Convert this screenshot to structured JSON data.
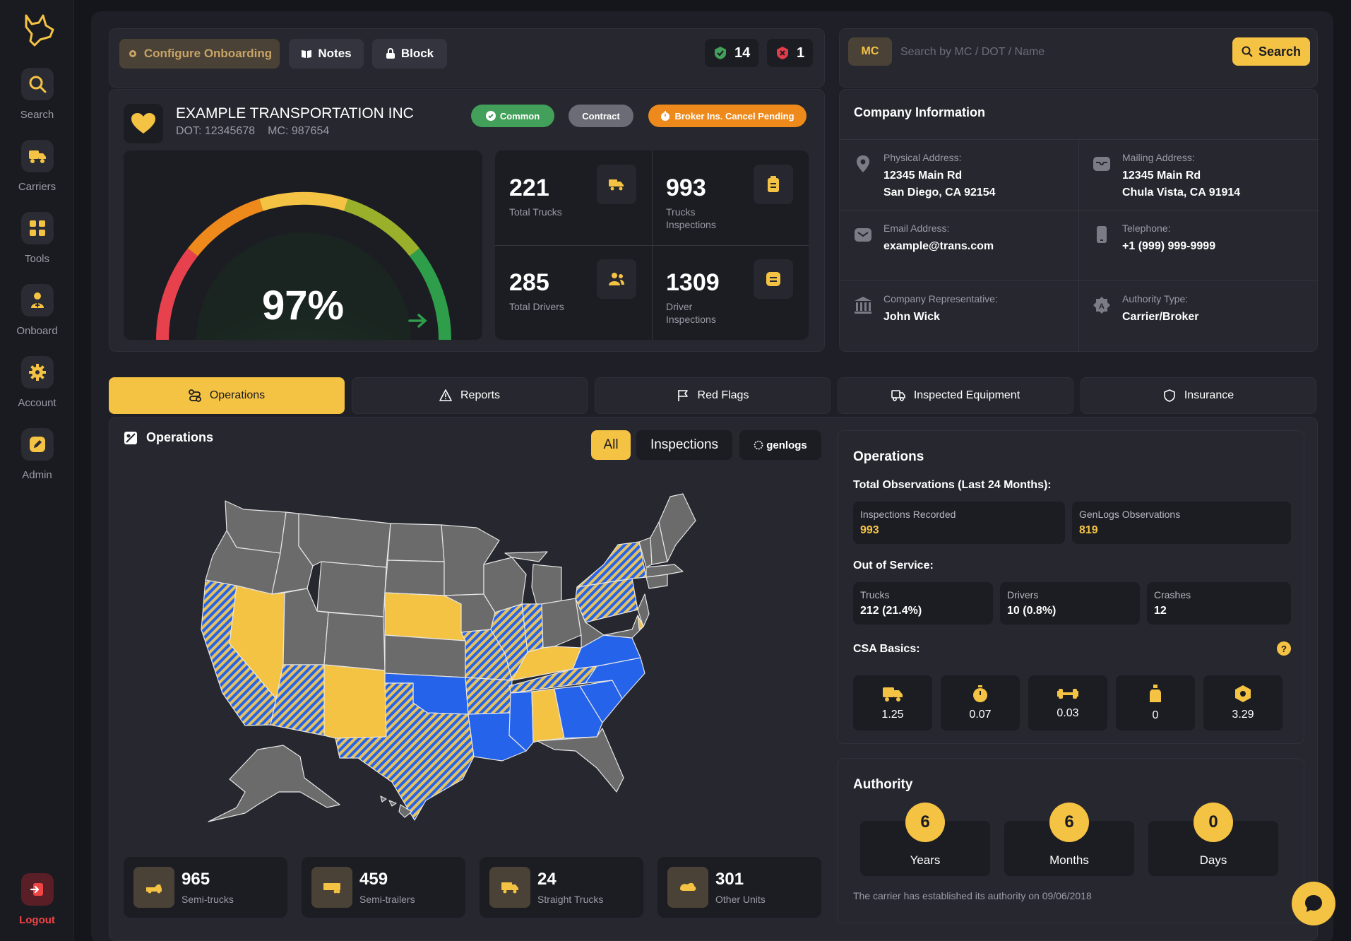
{
  "sidebar": {
    "items": [
      {
        "label": "Search",
        "icon": "search-icon"
      },
      {
        "label": "Carriers",
        "icon": "truck-icon"
      },
      {
        "label": "Tools",
        "icon": "grid-icon"
      },
      {
        "label": "Onboard",
        "icon": "user-plus-icon"
      },
      {
        "label": "Account",
        "icon": "gear-icon"
      },
      {
        "label": "Admin",
        "icon": "edit-icon"
      }
    ],
    "logout": "Logout"
  },
  "toolbar": {
    "configure_label": "Configure Onboarding",
    "notes_label": "Notes",
    "block_label": "Block",
    "approved_count": "14",
    "rejected_count": "1"
  },
  "search": {
    "prefix": "MC",
    "placeholder": "Search by MC / DOT / Name",
    "button_label": "Search"
  },
  "company": {
    "name": "EXAMPLE TRANSPORTATION INC",
    "dot": "DOT: 12345678",
    "mc": "MC: 987654",
    "tags": [
      "Common",
      "Contract",
      "Broker Ins. Cancel Pending"
    ],
    "score": "97%",
    "score_fraction": 0.97,
    "stats": [
      {
        "value": "221",
        "label": "Total Trucks"
      },
      {
        "value": "993",
        "label": "Trucks Inspections"
      },
      {
        "value": "285",
        "label": "Total Drivers"
      },
      {
        "value": "1309",
        "label": "Driver Inspections"
      }
    ]
  },
  "company_info": {
    "title": "Company Information",
    "physical_label": "Physical Address:",
    "physical_value": "12345 Main Rd\nSan Diego, CA 92154",
    "mailing_label": "Mailing Address:",
    "mailing_value": "12345 Main Rd\nChula Vista, CA 91914",
    "email_label": "Email Address:",
    "email_value": "example@trans.com",
    "phone_label": "Telephone:",
    "phone_value": "+1 (999) 999-9999",
    "rep_label": "Company Representative:",
    "rep_value": "John Wick",
    "authority_label": "Authority Type:",
    "authority_value": "Carrier/Broker"
  },
  "tabs": [
    {
      "label": "Operations",
      "icon": "route-icon"
    },
    {
      "label": "Reports",
      "icon": "warning-icon"
    },
    {
      "label": "Red Flags",
      "icon": "flag-icon"
    },
    {
      "label": "Inspected Equipment",
      "icon": "truck-outline-icon"
    },
    {
      "label": "Insurance",
      "icon": "shield-icon"
    }
  ],
  "operations": {
    "title": "Operations",
    "filters": [
      "All",
      "Inspections",
      "genlogs"
    ],
    "units": [
      {
        "value": "965",
        "label": "Semi-trucks"
      },
      {
        "value": "459",
        "label": "Semi-trailers"
      },
      {
        "value": "24",
        "label": "Straight Trucks"
      },
      {
        "value": "301",
        "label": "Other Units"
      }
    ]
  },
  "ops_panel": {
    "title": "Operations",
    "observations_label": "Total Observations (Last 24 Months):",
    "inspections_label": "Inspections Recorded",
    "inspections_value": "993",
    "genlogs_label": "GenLogs Observations",
    "genlogs_value": "819",
    "oos_label": "Out of Service:",
    "oos": [
      {
        "label": "Trucks",
        "value": "212 (21.4%)"
      },
      {
        "label": "Drivers",
        "value": "10 (0.8%)"
      },
      {
        "label": "Crashes",
        "value": "12"
      }
    ],
    "csa_label": "CSA Basics:",
    "csa": [
      {
        "icon": "truck-icon",
        "value": "1.25"
      },
      {
        "icon": "timer-icon",
        "value": "0.07"
      },
      {
        "icon": "dumbbell-icon",
        "value": "0.03"
      },
      {
        "icon": "bottle-icon",
        "value": "0"
      },
      {
        "icon": "hex-nut-icon",
        "value": "3.29"
      }
    ]
  },
  "authority": {
    "title": "Authority",
    "items": [
      {
        "value": "6",
        "label": "Years"
      },
      {
        "value": "6",
        "label": "Months"
      },
      {
        "value": "0",
        "label": "Days"
      }
    ],
    "note": "The carrier has established its authority on 09/06/2018"
  },
  "colors": {
    "accent": "#f5c343",
    "green": "#43a05a",
    "orange": "#ee8a1c",
    "blue": "#2563eb",
    "gray_state": "#6b6b6b"
  }
}
